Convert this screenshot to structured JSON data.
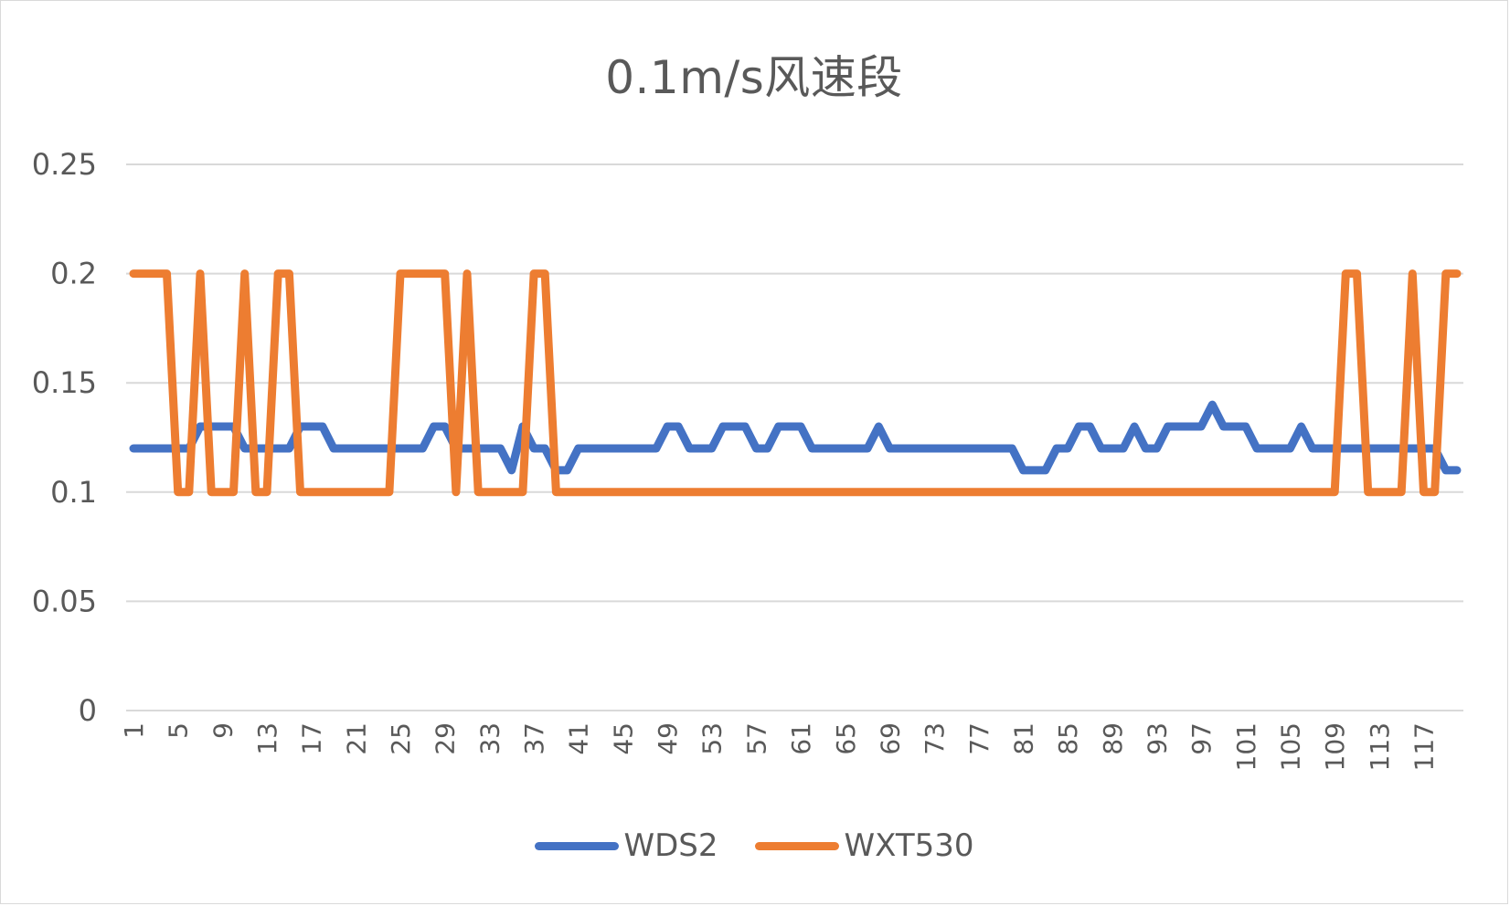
{
  "chart_data": {
    "type": "line",
    "title": "0.1m/s风速段",
    "xlabel": "",
    "ylabel": "",
    "ylim": [
      0,
      0.25
    ],
    "yticks": [
      "0",
      "0.05",
      "0.1",
      "0.15",
      "0.2",
      "0.25"
    ],
    "xtick_labels": [
      "1",
      "5",
      "9",
      "13",
      "17",
      "21",
      "25",
      "29",
      "33",
      "37",
      "41",
      "45",
      "49",
      "53",
      "57",
      "61",
      "65",
      "69",
      "73",
      "77",
      "81",
      "85",
      "89",
      "93",
      "97",
      "101",
      "105",
      "109",
      "113",
      "117"
    ],
    "grid": true,
    "legend_position": "bottom",
    "x": [
      1,
      2,
      3,
      4,
      5,
      6,
      7,
      8,
      9,
      10,
      11,
      12,
      13,
      14,
      15,
      16,
      17,
      18,
      19,
      20,
      21,
      22,
      23,
      24,
      25,
      26,
      27,
      28,
      29,
      30,
      31,
      32,
      33,
      34,
      35,
      36,
      37,
      38,
      39,
      40,
      41,
      42,
      43,
      44,
      45,
      46,
      47,
      48,
      49,
      50,
      51,
      52,
      53,
      54,
      55,
      56,
      57,
      58,
      59,
      60,
      61,
      62,
      63,
      64,
      65,
      66,
      67,
      68,
      69,
      70,
      71,
      72,
      73,
      74,
      75,
      76,
      77,
      78,
      79,
      80,
      81,
      82,
      83,
      84,
      85,
      86,
      87,
      88,
      89,
      90,
      91,
      92,
      93,
      94,
      95,
      96,
      97,
      98,
      99,
      100,
      101,
      102,
      103,
      104,
      105,
      106,
      107,
      108,
      109,
      110,
      111,
      112,
      113,
      114,
      115,
      116,
      117,
      118,
      119,
      120
    ],
    "series": [
      {
        "name": "WDS2",
        "color": "#4472C4",
        "values": [
          0.12,
          0.12,
          0.12,
          0.12,
          0.12,
          0.12,
          0.13,
          0.13,
          0.13,
          0.13,
          0.12,
          0.12,
          0.12,
          0.12,
          0.12,
          0.13,
          0.13,
          0.13,
          0.12,
          0.12,
          0.12,
          0.12,
          0.12,
          0.12,
          0.12,
          0.12,
          0.12,
          0.13,
          0.13,
          0.12,
          0.12,
          0.12,
          0.12,
          0.12,
          0.11,
          0.13,
          0.12,
          0.12,
          0.11,
          0.11,
          0.12,
          0.12,
          0.12,
          0.12,
          0.12,
          0.12,
          0.12,
          0.12,
          0.13,
          0.13,
          0.12,
          0.12,
          0.12,
          0.13,
          0.13,
          0.13,
          0.12,
          0.12,
          0.13,
          0.13,
          0.13,
          0.12,
          0.12,
          0.12,
          0.12,
          0.12,
          0.12,
          0.13,
          0.12,
          0.12,
          0.12,
          0.12,
          0.12,
          0.12,
          0.12,
          0.12,
          0.12,
          0.12,
          0.12,
          0.12,
          0.11,
          0.11,
          0.11,
          0.12,
          0.12,
          0.13,
          0.13,
          0.12,
          0.12,
          0.12,
          0.13,
          0.12,
          0.12,
          0.13,
          0.13,
          0.13,
          0.13,
          0.14,
          0.13,
          0.13,
          0.13,
          0.12,
          0.12,
          0.12,
          0.12,
          0.13,
          0.12,
          0.12,
          0.12,
          0.12,
          0.12,
          0.12,
          0.12,
          0.12,
          0.12,
          0.12,
          0.12,
          0.12,
          0.11,
          0.11
        ]
      },
      {
        "name": "WXT530",
        "color": "#ED7D31",
        "values": [
          0.2,
          0.2,
          0.2,
          0.2,
          0.1,
          0.1,
          0.2,
          0.1,
          0.1,
          0.1,
          0.2,
          0.1,
          0.1,
          0.2,
          0.2,
          0.1,
          0.1,
          0.1,
          0.1,
          0.1,
          0.1,
          0.1,
          0.1,
          0.1,
          0.2,
          0.2,
          0.2,
          0.2,
          0.2,
          0.1,
          0.2,
          0.1,
          0.1,
          0.1,
          0.1,
          0.1,
          0.2,
          0.2,
          0.1,
          0.1,
          0.1,
          0.1,
          0.1,
          0.1,
          0.1,
          0.1,
          0.1,
          0.1,
          0.1,
          0.1,
          0.1,
          0.1,
          0.1,
          0.1,
          0.1,
          0.1,
          0.1,
          0.1,
          0.1,
          0.1,
          0.1,
          0.1,
          0.1,
          0.1,
          0.1,
          0.1,
          0.1,
          0.1,
          0.1,
          0.1,
          0.1,
          0.1,
          0.1,
          0.1,
          0.1,
          0.1,
          0.1,
          0.1,
          0.1,
          0.1,
          0.1,
          0.1,
          0.1,
          0.1,
          0.1,
          0.1,
          0.1,
          0.1,
          0.1,
          0.1,
          0.1,
          0.1,
          0.1,
          0.1,
          0.1,
          0.1,
          0.1,
          0.1,
          0.1,
          0.1,
          0.1,
          0.1,
          0.1,
          0.1,
          0.1,
          0.1,
          0.1,
          0.1,
          0.1,
          0.2,
          0.2,
          0.1,
          0.1,
          0.1,
          0.1,
          0.2,
          0.1,
          0.1,
          0.2,
          0.2
        ]
      }
    ]
  },
  "legend": {
    "items": [
      {
        "label": "WDS2",
        "color": "#4472C4"
      },
      {
        "label": "WXT530",
        "color": "#ED7D31"
      }
    ]
  }
}
